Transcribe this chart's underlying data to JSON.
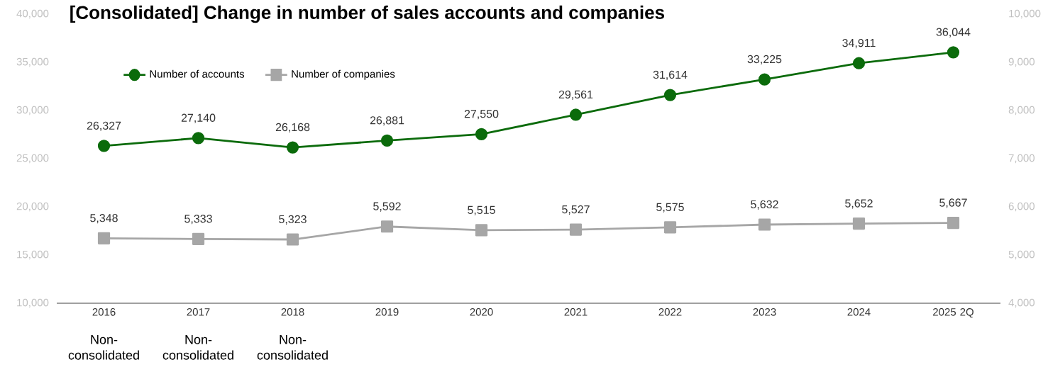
{
  "chart_data": {
    "type": "line",
    "title": "[Consolidated] Change in number of sales accounts and companies",
    "categories": [
      "2016",
      "2017",
      "2018",
      "2019",
      "2020",
      "2021",
      "2022",
      "2023",
      "2024",
      "2025 2Q"
    ],
    "series": [
      {
        "name": "Number of accounts",
        "color": "#0b6b0b",
        "marker": "circle",
        "values": [
          26327,
          27140,
          26168,
          26881,
          27550,
          29561,
          31614,
          33225,
          34911,
          36044
        ],
        "value_labels": [
          "26,327",
          "27,140",
          "26,168",
          "26,881",
          "27,550",
          "29,561",
          "31,614",
          "33,225",
          "34,911",
          "36,044"
        ]
      },
      {
        "name": "Number of companies",
        "color": "#a6a6a6",
        "marker": "square",
        "axis": "y2",
        "values": [
          5348,
          5333,
          5323,
          5592,
          5515,
          5527,
          5575,
          5632,
          5652,
          5667
        ],
        "value_labels": [
          "5,348",
          "5,333",
          "5,323",
          "5,592",
          "5,515",
          "5,527",
          "5,575",
          "5,632",
          "5,652",
          "5,667"
        ]
      }
    ],
    "ylim": [
      10000,
      40000
    ],
    "yticks": [
      {
        "value": 10000,
        "label": "10,000"
      },
      {
        "value": 15000,
        "label": "15,000"
      },
      {
        "value": 20000,
        "label": "20,000"
      },
      {
        "value": 25000,
        "label": "25,000"
      },
      {
        "value": 30000,
        "label": "30,000"
      },
      {
        "value": 35000,
        "label": "35,000"
      },
      {
        "value": 40000,
        "label": "40,000"
      }
    ],
    "y2lim": [
      4000,
      10000
    ],
    "y2ticks": [
      {
        "value": 4000,
        "label": "4,000"
      },
      {
        "value": 5000,
        "label": "5,000"
      },
      {
        "value": 6000,
        "label": "6,000"
      },
      {
        "value": 7000,
        "label": "7,000"
      },
      {
        "value": 8000,
        "label": "8,000"
      },
      {
        "value": 9000,
        "label": "9,000"
      },
      {
        "value": 10000,
        "label": "10,000"
      }
    ],
    "legend": "top left",
    "annotations": [
      "Non-consolidated",
      "Non-consolidated",
      "Non-consolidated"
    ]
  }
}
